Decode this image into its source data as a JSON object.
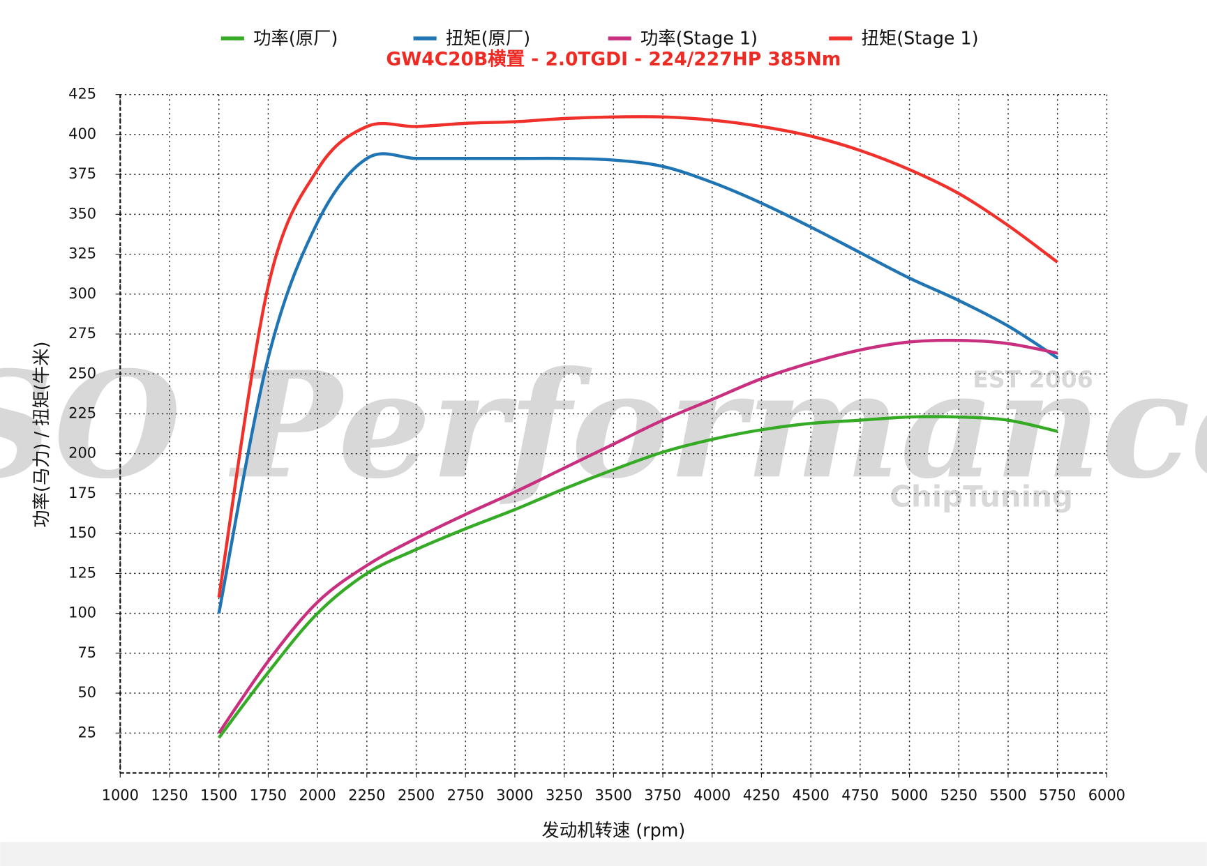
{
  "chart_data": {
    "type": "line",
    "title": "GW4C20B横置 - 2.0TGDI - 224/227HP 385Nm",
    "x_label": "发动机转速 (rpm)",
    "y_label": "功率(马力) / 扭矩(牛米)",
    "watermark": {
      "brand": "SO Performance",
      "established": "EST 2006",
      "tagline": "ChipTuning"
    },
    "x": [
      1500,
      1750,
      2000,
      2250,
      2500,
      2750,
      3000,
      3250,
      3500,
      3750,
      4000,
      4250,
      4500,
      4750,
      5000,
      5250,
      5500,
      5750
    ],
    "series": [
      {
        "name": "功率(原厂)",
        "color": "#34aa25",
        "values": [
          22,
          63,
          100,
          125,
          140,
          153,
          165,
          178,
          190,
          201,
          209,
          215,
          219,
          221,
          223,
          223,
          221,
          214
        ]
      },
      {
        "name": "扭矩(原厂)",
        "color": "#1f74b4",
        "values": [
          100,
          260,
          345,
          385,
          385,
          385,
          385,
          385,
          384,
          380,
          370,
          357,
          342,
          326,
          310,
          296,
          280,
          260
        ]
      },
      {
        "name": "功率(Stage 1)",
        "color": "#c8307f",
        "values": [
          25,
          70,
          107,
          130,
          147,
          162,
          176,
          191,
          206,
          221,
          234,
          247,
          257,
          265,
          270,
          271,
          269,
          263
        ]
      },
      {
        "name": "扭矩(Stage 1)",
        "color": "#f0302a",
        "values": [
          110,
          305,
          378,
          405,
          405,
          407,
          408,
          410,
          411,
          411,
          409,
          405,
          399,
          390,
          378,
          363,
          343,
          320
        ]
      }
    ],
    "xlim": [
      1000,
      6000
    ],
    "xticks": [
      1000,
      1250,
      1500,
      1750,
      2000,
      2250,
      2500,
      2750,
      3000,
      3250,
      3500,
      3750,
      4000,
      4250,
      4500,
      4750,
      5000,
      5250,
      5500,
      5750,
      6000
    ],
    "ylim": [
      0,
      425
    ],
    "yticks": [
      25,
      50,
      75,
      100,
      125,
      150,
      175,
      200,
      225,
      250,
      275,
      300,
      325,
      350,
      375,
      400,
      425
    ],
    "grid": true,
    "legend": "top"
  }
}
